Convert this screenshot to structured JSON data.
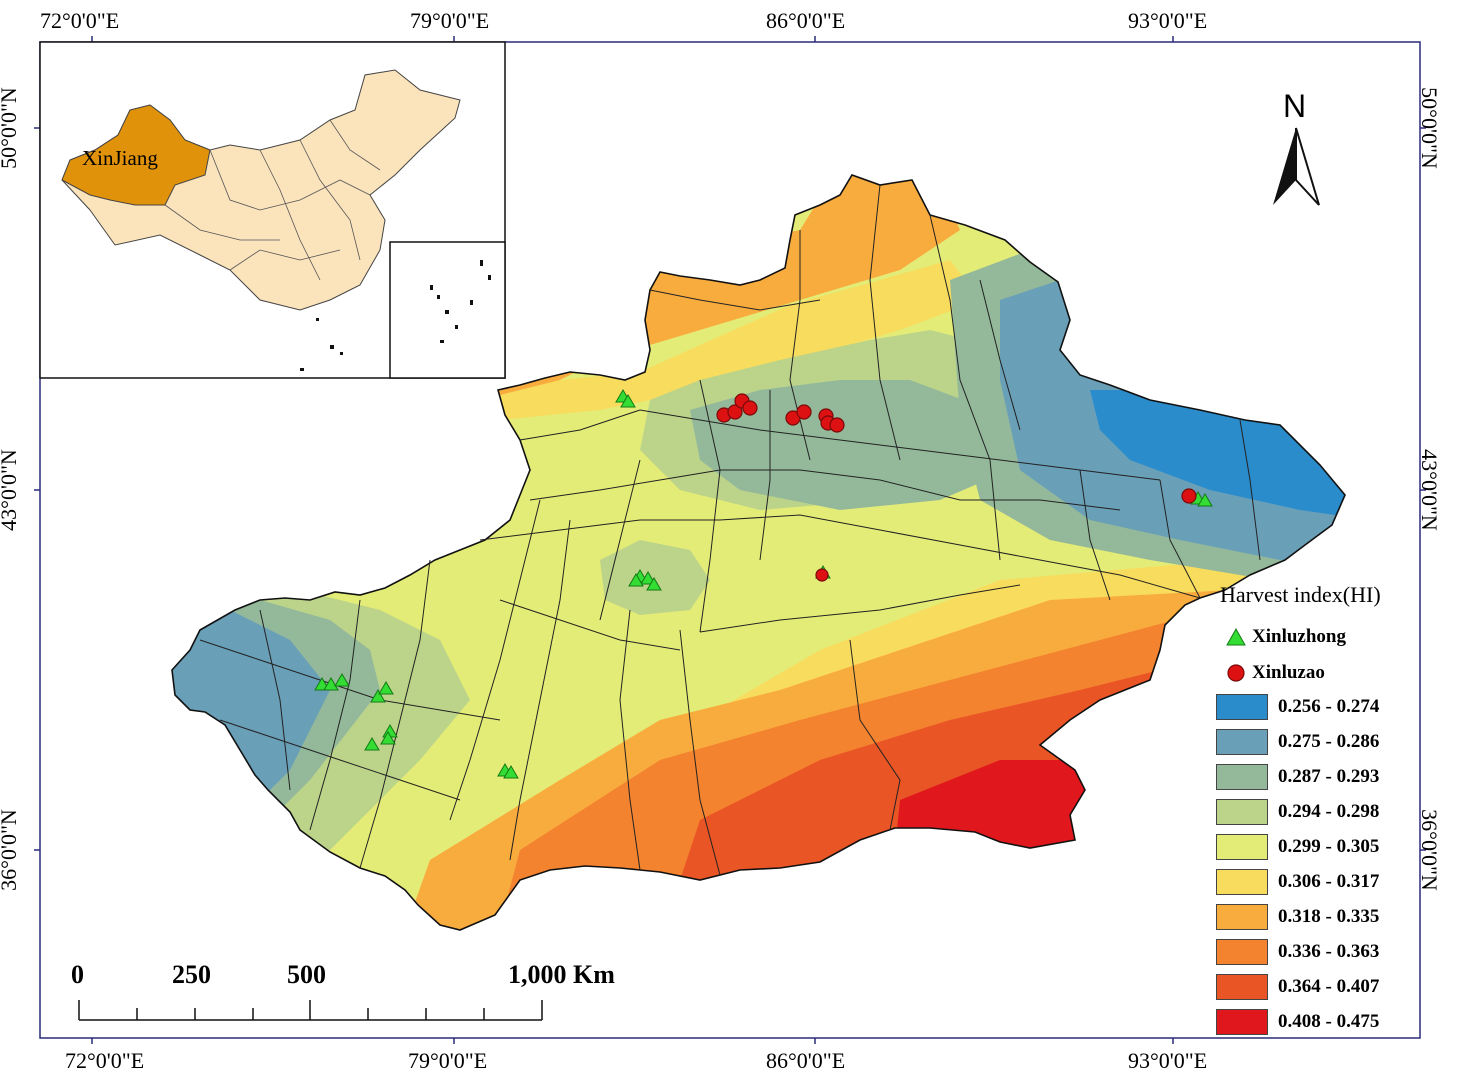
{
  "coordinates": {
    "top": [
      "72°0'0\"E",
      "79°0'0\"E",
      "86°0'0\"E",
      "93°0'0\"E"
    ],
    "bottom": [
      "72°0'0\"E",
      "79°0'0\"E",
      "86°0'0\"E",
      "93°0'0\"E"
    ],
    "left": [
      "50°0'0\"N",
      "43°0'0\"N",
      "36°0'0\"N"
    ],
    "right": [
      "50°0'0\"N",
      "43°0'0\"N",
      "36°0'0\"N"
    ]
  },
  "inset": {
    "region_label": "XinJiang"
  },
  "north_arrow": {
    "label": "N"
  },
  "legend": {
    "title": "Harvest index(HI)",
    "symbols": [
      {
        "label": "Xinluzhong",
        "shape": "triangle",
        "color": "#33dd33"
      },
      {
        "label": "Xinluzao",
        "shape": "circle",
        "color": "#dd1111"
      }
    ],
    "classes": [
      {
        "label": "0.256 - 0.274",
        "color": "#2b8ccc"
      },
      {
        "label": "0.275 - 0.286",
        "color": "#6a9fb8"
      },
      {
        "label": "0.287 - 0.293",
        "color": "#93b99a"
      },
      {
        "label": "0.294 - 0.298",
        "color": "#bcd38a"
      },
      {
        "label": "0.299 - 0.305",
        "color": "#e4ec78"
      },
      {
        "label": "0.306 - 0.317",
        "color": "#f7dc5e"
      },
      {
        "label": "0.318 - 0.335",
        "color": "#f9ac3e"
      },
      {
        "label": "0.336 - 0.363",
        "color": "#f3832f"
      },
      {
        "label": "0.364 - 0.407",
        "color": "#ea5526"
      },
      {
        "label": "0.408 - 0.475",
        "color": "#e0181d"
      }
    ]
  },
  "scale_bar": {
    "labels": [
      "0",
      "250",
      "500",
      "1,000 Km"
    ]
  }
}
